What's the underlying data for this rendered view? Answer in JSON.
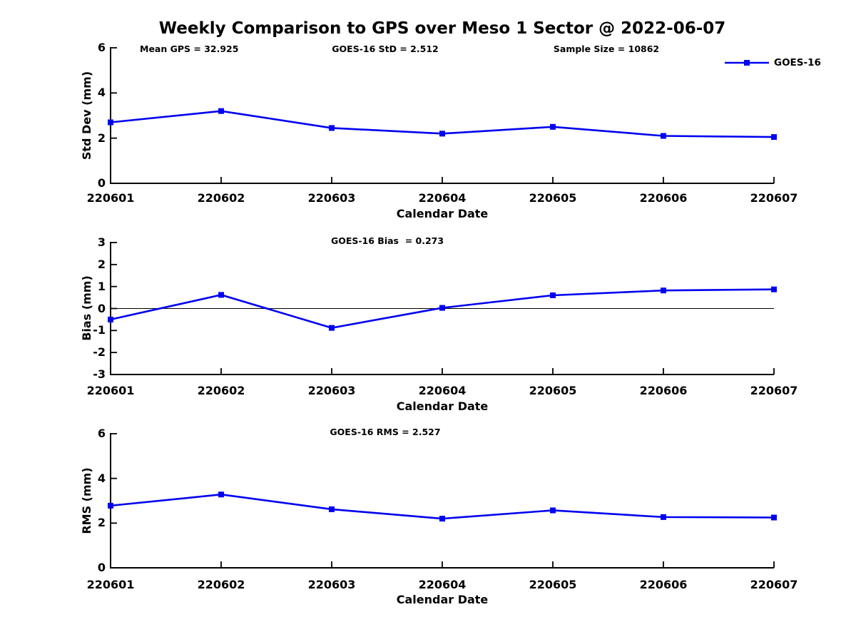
{
  "title": "Weekly Comparison to GPS over Meso 1 Sector @ 2022-06-07",
  "colors": {
    "series": "#0000f0",
    "axis": "#000000",
    "text": "#000000",
    "background": "#ffffff"
  },
  "legend": {
    "label": "GOES-16",
    "position": "top-right"
  },
  "chart_data": [
    {
      "type": "line",
      "annotations": [
        "Mean GPS = 32.925",
        "GOES-16 StD = 2.512",
        "Sample Size = 10862"
      ],
      "categories": [
        "220601",
        "220602",
        "220603",
        "220604",
        "220605",
        "220606",
        "220607"
      ],
      "series": [
        {
          "name": "GOES-16",
          "color": "#0000f0",
          "marker": "square",
          "values": [
            2.7,
            3.2,
            2.45,
            2.2,
            2.5,
            2.1,
            2.05
          ]
        }
      ],
      "xlabel": "Calendar Date",
      "ylabel": "Std Dev (mm)",
      "ylim": [
        0,
        6
      ],
      "yticks": [
        0,
        2,
        4,
        6
      ],
      "grid": false,
      "legend_position": "top-right"
    },
    {
      "type": "line",
      "annotations": [
        "GOES-16 Bias  = 0.273"
      ],
      "categories": [
        "220601",
        "220602",
        "220603",
        "220604",
        "220605",
        "220606",
        "220607"
      ],
      "series": [
        {
          "name": "GOES-16",
          "color": "#0000f0",
          "marker": "square",
          "values": [
            -0.5,
            0.62,
            -0.88,
            0.03,
            0.6,
            0.82,
            0.87
          ]
        }
      ],
      "xlabel": "Calendar Date",
      "ylabel": "Bias (mm)",
      "ylim": [
        -3,
        3
      ],
      "yticks": [
        -3,
        -2,
        -1,
        0,
        1,
        2,
        3
      ],
      "zero_line": true,
      "grid": false
    },
    {
      "type": "line",
      "annotations": [
        "GOES-16 RMS = 2.527"
      ],
      "categories": [
        "220601",
        "220602",
        "220603",
        "220604",
        "220605",
        "220606",
        "220607"
      ],
      "series": [
        {
          "name": "GOES-16",
          "color": "#0000f0",
          "marker": "square",
          "values": [
            2.78,
            3.28,
            2.62,
            2.2,
            2.57,
            2.27,
            2.25
          ]
        }
      ],
      "xlabel": "Calendar Date",
      "ylabel": "RMS (mm)",
      "ylim": [
        0,
        6
      ],
      "yticks": [
        0,
        2,
        4,
        6
      ],
      "grid": false
    }
  ]
}
